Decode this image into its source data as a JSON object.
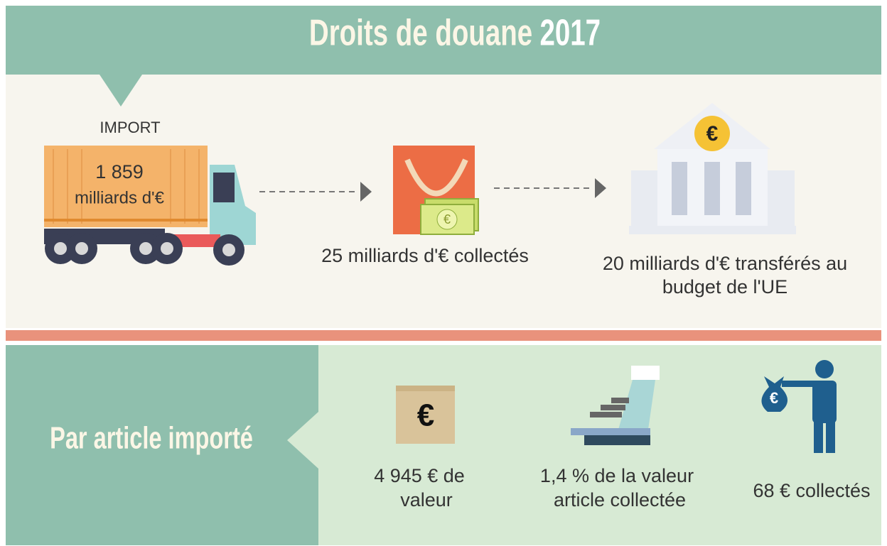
{
  "header": {
    "title": "Droits de douane",
    "year": "2017"
  },
  "import": {
    "label": "IMPORT",
    "amount": "1 859",
    "unit": "milliards d'€",
    "icon_symbol": "€"
  },
  "collected": {
    "caption": "25 milliards d'€ collectés"
  },
  "transferred": {
    "lines": [
      "20 milliards d'€ transférés au",
      "budget de l'UE"
    ]
  },
  "per_article": {
    "title": "Par article importé",
    "items": [
      {
        "lines": [
          "4 945  € de",
          "valeur"
        ]
      },
      {
        "lines": [
          "1,4  % de la valeur",
          "article collectée"
        ]
      },
      {
        "lines": [
          "68  € collectés"
        ]
      }
    ]
  }
}
